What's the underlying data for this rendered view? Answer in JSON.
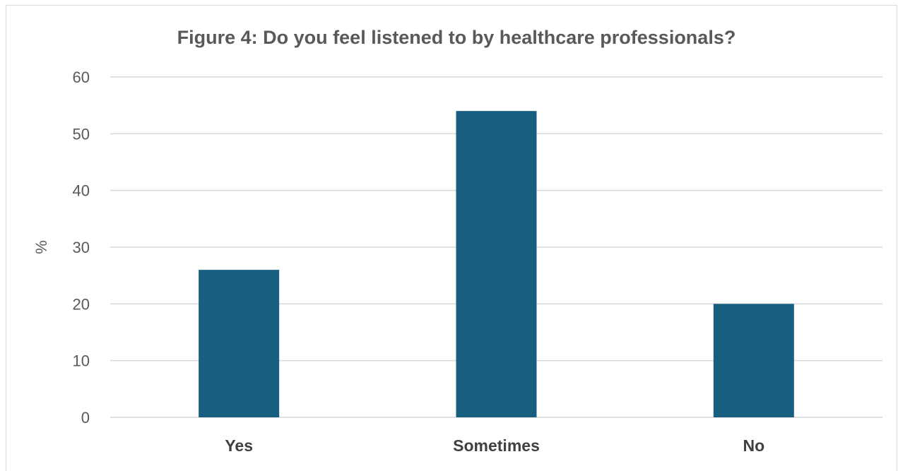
{
  "chart_data": {
    "type": "bar",
    "title": "Figure 4: Do you feel listened to by healthcare professionals?",
    "xlabel": "",
    "ylabel": "%",
    "categories": [
      "Yes",
      "Sometimes",
      "No"
    ],
    "values": [
      26,
      54,
      20
    ],
    "ylim": [
      0,
      60
    ],
    "yticks": [
      "0",
      "10",
      "20",
      "30",
      "40",
      "50",
      "60"
    ],
    "grid": true,
    "legend": "none",
    "bar_color": "#175f80",
    "grid_color": "#d9d9d9"
  }
}
